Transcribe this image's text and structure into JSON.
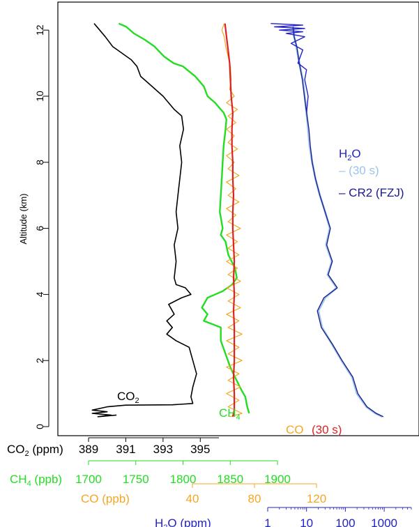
{
  "chart_data": {
    "type": "line",
    "ylabel": "Altitude (km)",
    "ylim": [
      0,
      12.4
    ],
    "y_ticks": [
      "0",
      "2",
      "4",
      "6",
      "8",
      "10",
      "12"
    ],
    "x_axes": [
      {
        "id": "co2",
        "label_main": "CO",
        "label_sub": "2",
        "label_tail": " (ppm)",
        "range": [
          389,
          396
        ],
        "ticks": [
          389,
          391,
          393,
          395
        ],
        "scale": "linear",
        "color": "#000000"
      },
      {
        "id": "ch4",
        "label_main": "CH",
        "label_sub": "4",
        "label_tail": " (ppb)",
        "range": [
          1700,
          1900
        ],
        "ticks": [
          1700,
          1750,
          1800,
          1850,
          1900
        ],
        "scale": "linear",
        "color": "#22dd22"
      },
      {
        "id": "co",
        "label_main": "CO",
        "label_sub": "",
        "label_tail": " (ppb)",
        "range": [
          40,
          120
        ],
        "ticks": [
          40,
          80,
          120
        ],
        "scale": "linear",
        "color": "#f5a623"
      },
      {
        "id": "h2o",
        "label_main": "H",
        "label_sub": "2",
        "label_tail": "O (ppm)",
        "range": [
          1,
          5000
        ],
        "ticks": [
          1,
          10,
          100,
          1000
        ],
        "scale": "log",
        "color": "#2222cc"
      }
    ],
    "series": [
      {
        "id": "co2",
        "color": "#000000",
        "points": [
          [
            389.3,
            12.2
          ],
          [
            389.6,
            12.0
          ],
          [
            389.9,
            11.8
          ],
          [
            390.3,
            11.5
          ],
          [
            390.8,
            11.3
          ],
          [
            391.3,
            11.1
          ],
          [
            391.6,
            10.9
          ],
          [
            391.8,
            10.6
          ],
          [
            392.2,
            10.4
          ],
          [
            392.6,
            10.2
          ],
          [
            393.0,
            10.0
          ],
          [
            393.3,
            9.8
          ],
          [
            393.6,
            9.6
          ],
          [
            394.0,
            9.4
          ],
          [
            394.1,
            9.0
          ],
          [
            393.9,
            8.5
          ],
          [
            394.0,
            8.0
          ],
          [
            393.9,
            7.5
          ],
          [
            393.8,
            7.0
          ],
          [
            393.7,
            6.5
          ],
          [
            393.8,
            6.0
          ],
          [
            393.6,
            5.5
          ],
          [
            393.7,
            5.0
          ],
          [
            393.6,
            4.5
          ],
          [
            393.7,
            4.3
          ],
          [
            394.2,
            4.2
          ],
          [
            394.5,
            4.0
          ],
          [
            394.0,
            3.9
          ],
          [
            393.3,
            3.7
          ],
          [
            393.6,
            3.4
          ],
          [
            393.2,
            3.2
          ],
          [
            393.5,
            3.0
          ],
          [
            393.2,
            2.8
          ],
          [
            393.7,
            2.6
          ],
          [
            394.4,
            2.4
          ],
          [
            394.6,
            2.0
          ],
          [
            394.8,
            1.6
          ],
          [
            394.6,
            1.2
          ],
          [
            394.5,
            0.9
          ],
          [
            394.6,
            0.7
          ],
          [
            393.5,
            0.66
          ],
          [
            391.0,
            0.65
          ],
          [
            390.0,
            0.6
          ],
          [
            389.2,
            0.5
          ],
          [
            390.0,
            0.45
          ],
          [
            389.2,
            0.4
          ],
          [
            390.2,
            0.35
          ],
          [
            389.5,
            0.3
          ],
          [
            390.5,
            0.35
          ]
        ]
      },
      {
        "id": "ch4",
        "color": "#22dd22",
        "points": [
          [
            1732,
            12.2
          ],
          [
            1740,
            12.1
          ],
          [
            1748,
            11.9
          ],
          [
            1760,
            11.7
          ],
          [
            1770,
            11.5
          ],
          [
            1780,
            11.2
          ],
          [
            1790,
            11.0
          ],
          [
            1800,
            10.9
          ],
          [
            1813,
            10.6
          ],
          [
            1822,
            10.3
          ],
          [
            1826,
            10.0
          ],
          [
            1834,
            9.8
          ],
          [
            1840,
            9.6
          ],
          [
            1843,
            9.5
          ],
          [
            1846,
            9.3
          ],
          [
            1845,
            9.0
          ],
          [
            1843,
            8.5
          ],
          [
            1842,
            8.0
          ],
          [
            1841,
            7.5
          ],
          [
            1840,
            7.0
          ],
          [
            1839,
            6.5
          ],
          [
            1842,
            6.0
          ],
          [
            1840,
            5.8
          ],
          [
            1845,
            5.6
          ],
          [
            1848,
            5.2
          ],
          [
            1855,
            4.8
          ],
          [
            1857,
            4.5
          ],
          [
            1852,
            4.3
          ],
          [
            1842,
            4.1
          ],
          [
            1826,
            3.9
          ],
          [
            1820,
            3.6
          ],
          [
            1826,
            3.4
          ],
          [
            1822,
            3.2
          ],
          [
            1840,
            3.0
          ],
          [
            1840,
            2.6
          ],
          [
            1845,
            2.2
          ],
          [
            1850,
            1.8
          ],
          [
            1855,
            1.5
          ],
          [
            1862,
            1.1
          ],
          [
            1866,
            0.9
          ],
          [
            1868,
            0.6
          ],
          [
            1870,
            0.4
          ]
        ]
      },
      {
        "id": "co_raw",
        "color": "#f5a623",
        "points": [
          [
            60.5,
            12.2
          ],
          [
            59,
            12.0
          ],
          [
            60.5,
            11.8
          ],
          [
            61.5,
            11.5
          ],
          [
            63,
            11.2
          ],
          [
            64.5,
            10.9
          ],
          [
            65,
            10.5
          ],
          [
            64,
            10.2
          ],
          [
            67,
            10.0
          ],
          [
            62,
            9.8
          ],
          [
            69,
            9.6
          ],
          [
            63,
            9.4
          ],
          [
            68,
            9.2
          ],
          [
            62,
            9.0
          ],
          [
            67,
            8.8
          ],
          [
            63,
            8.6
          ],
          [
            69,
            8.4
          ],
          [
            62,
            8.2
          ],
          [
            67,
            8.0
          ],
          [
            63,
            7.8
          ],
          [
            70,
            7.6
          ],
          [
            62,
            7.4
          ],
          [
            68,
            7.2
          ],
          [
            63,
            7.0
          ],
          [
            70,
            6.8
          ],
          [
            62,
            6.6
          ],
          [
            68,
            6.4
          ],
          [
            63,
            6.2
          ],
          [
            71,
            6.0
          ],
          [
            62,
            5.8
          ],
          [
            69,
            5.6
          ],
          [
            63,
            5.4
          ],
          [
            70,
            5.2
          ],
          [
            62,
            5.0
          ],
          [
            69,
            4.8
          ],
          [
            63,
            4.6
          ],
          [
            71,
            4.4
          ],
          [
            62,
            4.2
          ],
          [
            70,
            4.0
          ],
          [
            63,
            3.8
          ],
          [
            71,
            3.6
          ],
          [
            62,
            3.4
          ],
          [
            70,
            3.2
          ],
          [
            63,
            3.0
          ],
          [
            72,
            2.8
          ],
          [
            62,
            2.6
          ],
          [
            70,
            2.4
          ],
          [
            63,
            2.2
          ],
          [
            72,
            2.0
          ],
          [
            62,
            1.8
          ],
          [
            70,
            1.6
          ],
          [
            63,
            1.4
          ],
          [
            71,
            1.2
          ],
          [
            62,
            1.0
          ],
          [
            70,
            0.8
          ],
          [
            63,
            0.6
          ],
          [
            72,
            0.4
          ],
          [
            64,
            0.3
          ]
        ]
      },
      {
        "id": "co_30s",
        "color": "#dd2222",
        "points": [
          [
            61,
            12.2
          ],
          [
            62,
            11.8
          ],
          [
            63,
            11.4
          ],
          [
            64,
            11.0
          ],
          [
            64.5,
            10.5
          ],
          [
            65,
            10.0
          ],
          [
            66,
            9.5
          ],
          [
            65.5,
            9.0
          ],
          [
            65.5,
            8.5
          ],
          [
            66,
            8.0
          ],
          [
            66,
            7.5
          ],
          [
            66.5,
            7.0
          ],
          [
            66,
            6.5
          ],
          [
            66,
            6.0
          ],
          [
            66.5,
            5.5
          ],
          [
            67,
            5.0
          ],
          [
            66.5,
            4.5
          ],
          [
            67,
            4.0
          ],
          [
            66.5,
            3.5
          ],
          [
            67,
            3.0
          ],
          [
            67,
            2.5
          ],
          [
            67,
            2.0
          ],
          [
            66.5,
            1.5
          ],
          [
            67,
            1.0
          ],
          [
            67,
            0.5
          ],
          [
            66,
            0.3
          ]
        ]
      },
      {
        "id": "h2o_30s",
        "color": "#9cc4e8",
        "points": [
          [
            4.5,
            12.1
          ],
          [
            4.8,
            11.8
          ],
          [
            5.5,
            11.5
          ],
          [
            6.5,
            11.0
          ],
          [
            8,
            10.5
          ],
          [
            9,
            10.0
          ],
          [
            10,
            9.5
          ],
          [
            11,
            9.0
          ],
          [
            12,
            8.5
          ],
          [
            14,
            8.0
          ],
          [
            17,
            7.5
          ],
          [
            22,
            7.0
          ],
          [
            30,
            6.5
          ],
          [
            40,
            6.0
          ],
          [
            32,
            5.5
          ],
          [
            45,
            5.0
          ],
          [
            35,
            4.6
          ],
          [
            60,
            4.2
          ],
          [
            30,
            3.9
          ],
          [
            20,
            3.5
          ],
          [
            25,
            3.0
          ],
          [
            45,
            2.5
          ],
          [
            80,
            2.0
          ],
          [
            150,
            1.5
          ],
          [
            200,
            1.0
          ],
          [
            350,
            0.6
          ],
          [
            600,
            0.4
          ],
          [
            900,
            0.3
          ]
        ]
      },
      {
        "id": "h2o_cr2",
        "color": "#1a1a88",
        "points": [
          [
            4.5,
            12.1
          ],
          [
            4.8,
            11.8
          ],
          [
            5.6,
            11.5
          ],
          [
            6.5,
            11.0
          ],
          [
            7.8,
            10.5
          ],
          [
            8.8,
            10.0
          ],
          [
            10,
            9.5
          ],
          [
            11.5,
            9.0
          ],
          [
            12.5,
            8.5
          ],
          [
            14,
            8.0
          ],
          [
            17,
            7.5
          ],
          [
            22,
            7.0
          ],
          [
            30,
            6.5
          ],
          [
            41,
            6.0
          ],
          [
            33,
            5.5
          ],
          [
            46,
            5.0
          ],
          [
            36,
            4.6
          ],
          [
            62,
            4.2
          ],
          [
            28,
            3.9
          ],
          [
            19,
            3.5
          ],
          [
            24,
            3.0
          ],
          [
            46,
            2.5
          ],
          [
            82,
            2.0
          ],
          [
            155,
            1.5
          ],
          [
            210,
            1.0
          ],
          [
            360,
            0.6
          ],
          [
            620,
            0.4
          ],
          [
            950,
            0.3
          ]
        ]
      },
      {
        "id": "h2o_raw",
        "color": "#2222cc",
        "points": [
          [
            1.2,
            12.2
          ],
          [
            8,
            12.15
          ],
          [
            1.5,
            12.1
          ],
          [
            9,
            12.05
          ],
          [
            2,
            12.0
          ],
          [
            8,
            11.95
          ],
          [
            3,
            11.9
          ],
          [
            9,
            11.8
          ],
          [
            4,
            11.6
          ],
          [
            8,
            11.4
          ],
          [
            6,
            11.0
          ],
          [
            10,
            10.8
          ],
          [
            9,
            10.5
          ],
          [
            11,
            10.0
          ],
          [
            10,
            9.5
          ]
        ]
      }
    ],
    "annotations": [
      {
        "id": "co2",
        "main": "CO",
        "sub": "2",
        "tail": "",
        "color": "#000000"
      },
      {
        "id": "ch4",
        "main": "CH",
        "sub": "4",
        "tail": "",
        "color": "#22dd22"
      },
      {
        "id": "co",
        "main": "CO",
        "sub": "",
        "tail": "",
        "color": "#f5a623"
      },
      {
        "id": "co30",
        "main": "(30 s)",
        "sub": "",
        "tail": "",
        "color": "#dd2222"
      },
      {
        "id": "h2o",
        "main": "H",
        "sub": "2",
        "tail": "O",
        "color": "#2222cc"
      },
      {
        "id": "h2o30",
        "main": "– (30 s)",
        "sub": "",
        "tail": "",
        "color": "#9cc4e8"
      },
      {
        "id": "cr2",
        "main": "– CR2 (FZJ)",
        "sub": "",
        "tail": "",
        "color": "#1a1a88"
      }
    ]
  }
}
